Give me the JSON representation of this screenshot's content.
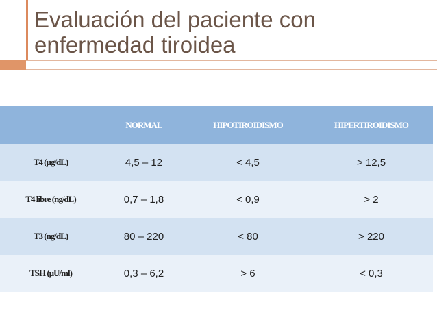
{
  "slide": {
    "title": "Evaluación del paciente con enfermedad tiroidea"
  },
  "table": {
    "headers": [
      "",
      "NORMAL",
      "HIPOTIROIDISMO",
      "HIPERTIROIDISMO"
    ],
    "rows": [
      {
        "label": "T4 (µg/dL)",
        "normal": "4,5 – 12",
        "hipo": "< 4,5",
        "hiper": "> 12,5"
      },
      {
        "label": "T4 libre (ng/dL)",
        "normal": "0,7 – 1,8",
        "hipo": "< 0,9",
        "hiper": "> 2"
      },
      {
        "label": "T3 (ng/dL)",
        "normal": "80 – 220",
        "hipo": "< 80",
        "hiper": "> 220"
      },
      {
        "label": "TSH (µU/ml)",
        "normal": "0,3 – 6,2",
        "hipo": "> 6",
        "hiper": "< 0,3"
      }
    ]
  },
  "colors": {
    "title": "#6b5548",
    "accent": "#dc8a5e",
    "header_bg": "#8fb4dc",
    "band_bg": "#d3e2f2",
    "plain_bg": "#eaf1f9"
  }
}
